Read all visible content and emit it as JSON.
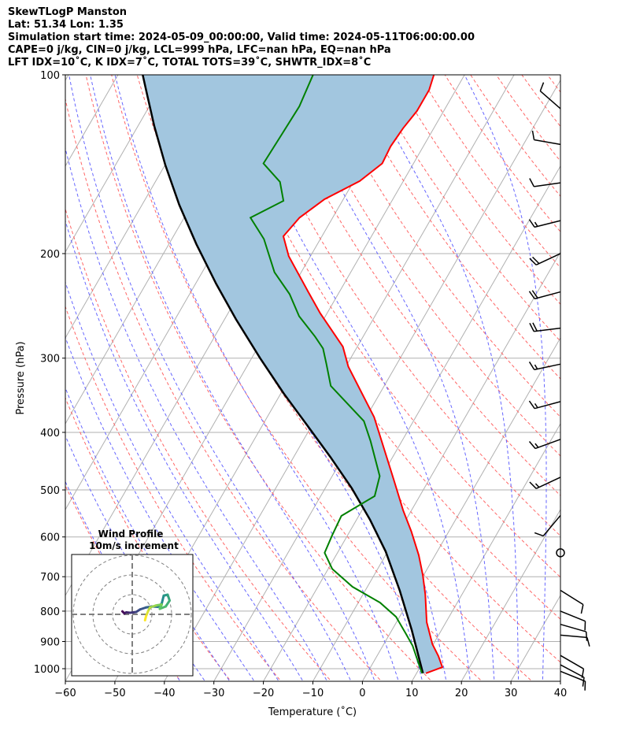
{
  "header": {
    "line1": "SkewTLogP Manston",
    "line2": "Lat: 51.34   Lon: 1.35",
    "line3": "Simulation start time: 2024-05-09_00:00:00, Valid time: 2024-05-11T06:00:00.00",
    "line4": "CAPE=0 j/kg, CIN=0 j/kg, LCL=999 hPa, LFC=nan hPa, EQ=nan hPa",
    "line5": "LFT IDX=10˚C, K IDX=7˚C, TOTAL TOTS=39˚C, SHWTR_IDX=8˚C"
  },
  "chart_data": {
    "type": "line",
    "title": "SkewTLogP Manston",
    "xlabel": "Temperature (˚C)",
    "ylabel": "Pressure (hPa)",
    "xlim": [
      -60,
      40
    ],
    "ylim": [
      1050,
      100
    ],
    "x_ticks": [
      "−60",
      "−50",
      "−40",
      "−30",
      "−20",
      "−10",
      "0",
      "10",
      "20",
      "30",
      "40"
    ],
    "x_tick_values": [
      -60,
      -50,
      -40,
      -30,
      -20,
      -10,
      0,
      10,
      20,
      30,
      40
    ],
    "y_ticks": [
      "100",
      "200",
      "300",
      "400",
      "500",
      "600",
      "700",
      "800",
      "900",
      "1000"
    ],
    "y_tick_values": [
      100,
      200,
      300,
      400,
      500,
      600,
      700,
      800,
      900,
      1000
    ],
    "grid": true,
    "colors": {
      "temperature": "#ff0000",
      "dewpoint": "#008000",
      "parcel": "#000000",
      "cape_fill": "#a2c6df",
      "isotherm": "#b0b0b0",
      "dry_adiabat": "#ff6666",
      "moist_adiabat": "#6666ff"
    },
    "series": [
      {
        "name": "temperature",
        "pressure": [
          1018,
          994,
          952,
          909,
          835,
          750,
          695,
          644,
          587,
          541,
          479,
          377,
          357,
          310,
          287,
          252,
          232,
          202,
          187,
          174,
          162,
          151,
          141,
          132,
          123,
          115,
          106,
          100
        ],
        "values": [
          11.9,
          14.5,
          12.4,
          9.8,
          6.1,
          2.6,
          -0.2,
          -3.3,
          -7.6,
          -11.7,
          -17.3,
          -28.4,
          -31.5,
          -39.5,
          -42.9,
          -51.4,
          -56.3,
          -64.4,
          -67.8,
          -66.7,
          -63.8,
          -58.8,
          -56.3,
          -56.6,
          -56.2,
          -55.4,
          -55.4,
          -56.2
        ]
      },
      {
        "name": "dewpoint",
        "pressure": [
          1018,
          915,
          874,
          818,
          774,
          728,
          679,
          638,
          597,
          553,
          512,
          474,
          414,
          383,
          334,
          307,
          289,
          276,
          255,
          234,
          215,
          189,
          174,
          163,
          151.5,
          141,
          126.5,
          113,
          100
        ],
        "values": [
          11.1,
          6.0,
          3.3,
          -0.7,
          -5.6,
          -13.0,
          -19.2,
          -22.6,
          -23.1,
          -23.5,
          -19.1,
          -20.4,
          -26.3,
          -30.0,
          -40.8,
          -44.2,
          -46.7,
          -49.7,
          -55.3,
          -59.8,
          -65.4,
          -71.4,
          -76.6,
          -71.9,
          -74.8,
          -80.3,
          -80.0,
          -79.7,
          -80.6
        ]
      },
      {
        "name": "parcel",
        "pressure": [
          1018,
          861,
          739,
          635,
          561,
          497,
          440,
          389,
          344,
          300,
          258,
          225,
          193,
          165.5,
          142,
          122,
          108,
          100
        ],
        "values": [
          11.3,
          4.0,
          -3.0,
          -10.4,
          -17.3,
          -24.6,
          -32.6,
          -41.0,
          -49.4,
          -58.3,
          -67.7,
          -75.8,
          -84.4,
          -92.5,
          -99.9,
          -106.7,
          -111.8,
          -115.0
        ]
      }
    ],
    "dry_adiabat_theta_c": [
      -40,
      -30,
      -20,
      -10,
      0,
      10,
      20,
      30,
      40,
      50,
      60,
      70,
      80,
      90,
      100,
      110,
      120,
      130,
      140,
      150,
      160,
      170,
      180,
      190
    ],
    "moist_adiabat_t0_c": [
      -40,
      -35,
      -30,
      -25,
      -20,
      -15,
      -10,
      -5,
      0,
      5,
      10,
      15,
      20,
      25,
      30,
      35
    ],
    "isotherms_c": [
      -150,
      -140,
      -130,
      -120,
      -110,
      -100,
      -90,
      -80,
      -70,
      -60,
      -50,
      -40,
      -30,
      -20,
      -10,
      0,
      10,
      20,
      30,
      40
    ],
    "wind_barbs": [
      {
        "pressure": 114,
        "dir_deg": 311,
        "speed_kt": 10
      },
      {
        "pressure": 131,
        "dir_deg": 280,
        "speed_kt": 10
      },
      {
        "pressure": 152,
        "dir_deg": 262,
        "speed_kt": 10
      },
      {
        "pressure": 176,
        "dir_deg": 256,
        "speed_kt": 15
      },
      {
        "pressure": 200,
        "dir_deg": 245,
        "speed_kt": 20
      },
      {
        "pressure": 232,
        "dir_deg": 255,
        "speed_kt": 20
      },
      {
        "pressure": 267,
        "dir_deg": 263,
        "speed_kt": 20
      },
      {
        "pressure": 307,
        "dir_deg": 258,
        "speed_kt": 15
      },
      {
        "pressure": 355,
        "dir_deg": 255,
        "speed_kt": 15
      },
      {
        "pressure": 411,
        "dir_deg": 250,
        "speed_kt": 15
      },
      {
        "pressure": 476,
        "dir_deg": 245,
        "speed_kt": 15
      },
      {
        "pressure": 552,
        "dir_deg": 220,
        "speed_kt": 10
      },
      {
        "pressure": 638,
        "dir_deg": 0,
        "speed_kt": 0
      },
      {
        "pressure": 738,
        "dir_deg": 122,
        "speed_kt": 10
      },
      {
        "pressure": 800,
        "dir_deg": 112,
        "speed_kt": 10
      },
      {
        "pressure": 842,
        "dir_deg": 106,
        "speed_kt": 10
      },
      {
        "pressure": 878,
        "dir_deg": 95,
        "speed_kt": 10
      },
      {
        "pressure": 950,
        "dir_deg": 120,
        "speed_kt": 10
      },
      {
        "pressure": 985,
        "dir_deg": 118,
        "speed_kt": 10
      },
      {
        "pressure": 1010,
        "dir_deg": 112,
        "speed_kt": 10
      }
    ],
    "hodograph": {
      "title": "Wind Profile",
      "subtitle": "10m/s increment",
      "ring_increment_ms": 10,
      "u": [
        -5,
        -4,
        -3,
        -1,
        2,
        4,
        7,
        10,
        13,
        15,
        16,
        18,
        19,
        17,
        14,
        15,
        12,
        9,
        8,
        7,
        6.5
      ],
      "v": [
        1.5,
        0.5,
        1,
        0.8,
        1.2,
        2.5,
        3.5,
        4,
        3.8,
        5.5,
        9.5,
        10,
        7,
        4,
        2.8,
        5,
        4.5,
        3.5,
        1.5,
        -1,
        -3
      ]
    }
  }
}
